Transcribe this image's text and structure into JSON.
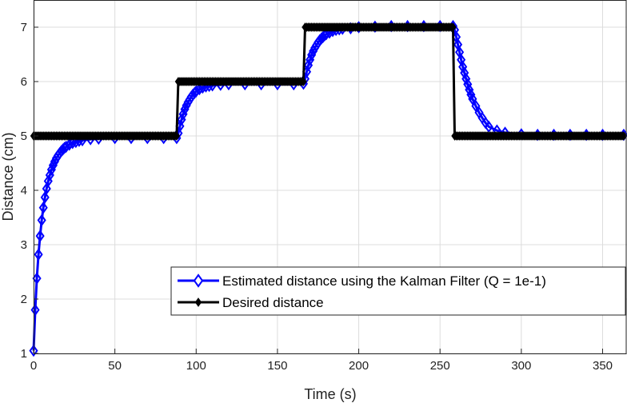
{
  "chart_data": {
    "type": "line",
    "xlabel": "Time (s)",
    "ylabel": "Distance (cm)",
    "xlim": [
      0,
      365
    ],
    "ylim": [
      1,
      7.5
    ],
    "xticks": [
      0,
      50,
      100,
      150,
      200,
      250,
      300,
      350
    ],
    "yticks": [
      1,
      2,
      3,
      4,
      5,
      6,
      7
    ],
    "grid": true,
    "legend_position": "bottom-right",
    "series": [
      {
        "name": "Estimated distance using the Kalman Filter (Q = 1e-1)",
        "color": "#0000ff",
        "marker": "diamond",
        "x": [
          0,
          1,
          2,
          3,
          4,
          5,
          6,
          7,
          8,
          9,
          10,
          11,
          12,
          13,
          14,
          15,
          16,
          17,
          18,
          19,
          20,
          22,
          24,
          26,
          28,
          30,
          35,
          40,
          50,
          60,
          70,
          80,
          88,
          89,
          90,
          91,
          92,
          93,
          94,
          95,
          96,
          97,
          98,
          99,
          100,
          102,
          104,
          106,
          108,
          110,
          115,
          120,
          130,
          140,
          150,
          160,
          166,
          167,
          168,
          169,
          170,
          171,
          172,
          173,
          174,
          175,
          176,
          177,
          178,
          179,
          180,
          182,
          184,
          186,
          188,
          190,
          195,
          200,
          210,
          220,
          230,
          240,
          250,
          258,
          259,
          260,
          261,
          262,
          263,
          264,
          265,
          266,
          267,
          268,
          269,
          270,
          272,
          274,
          276,
          278,
          280,
          285,
          290,
          300,
          310,
          320,
          330,
          340,
          350,
          363
        ],
        "y": [
          1.05,
          1.8,
          2.38,
          2.82,
          3.16,
          3.45,
          3.68,
          3.87,
          4.03,
          4.17,
          4.28,
          4.38,
          4.46,
          4.53,
          4.59,
          4.64,
          4.68,
          4.72,
          4.75,
          4.78,
          4.8,
          4.84,
          4.87,
          4.89,
          4.91,
          4.92,
          4.94,
          4.95,
          4.96,
          4.96,
          4.96,
          4.96,
          4.96,
          5.05,
          5.18,
          5.3,
          5.4,
          5.49,
          5.56,
          5.62,
          5.67,
          5.72,
          5.76,
          5.79,
          5.82,
          5.86,
          5.89,
          5.91,
          5.92,
          5.93,
          5.94,
          5.95,
          5.95,
          5.95,
          5.95,
          5.95,
          5.96,
          6.05,
          6.18,
          6.3,
          6.4,
          6.49,
          6.56,
          6.62,
          6.67,
          6.72,
          6.76,
          6.79,
          6.82,
          6.85,
          6.87,
          6.9,
          6.93,
          6.95,
          6.96,
          6.97,
          6.98,
          7.0,
          7.01,
          7.02,
          7.02,
          7.02,
          7.02,
          7.02,
          6.95,
          6.82,
          6.68,
          6.54,
          6.4,
          6.27,
          6.16,
          6.05,
          5.95,
          5.85,
          5.76,
          5.68,
          5.55,
          5.43,
          5.33,
          5.24,
          5.17,
          5.1,
          5.06,
          5.03,
          5.02,
          5.02,
          5.02,
          5.02,
          5.02,
          5.02
        ]
      },
      {
        "name": "Desired distance",
        "color": "#000000",
        "marker": "diamond-filled",
        "segments": [
          {
            "x0": 0,
            "x1": 88,
            "y": 5
          },
          {
            "x0": 89,
            "x1": 166,
            "y": 6
          },
          {
            "x0": 167,
            "x1": 258,
            "y": 7
          },
          {
            "x0": 259,
            "x1": 363,
            "y": 5
          }
        ]
      }
    ]
  }
}
